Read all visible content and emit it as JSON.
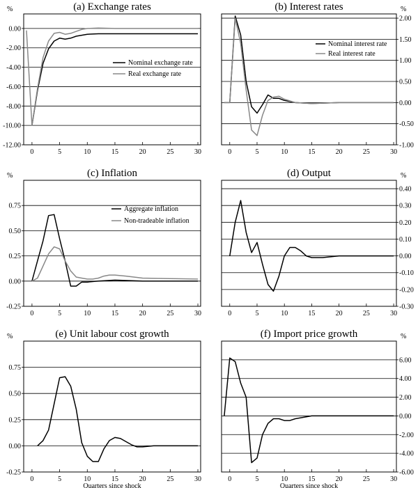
{
  "chart_data": [
    {
      "id": "a",
      "type": "line",
      "title": "(a) Exchange rates",
      "unit": "%",
      "unit_side": "left",
      "xlabel": "",
      "xlim": [
        -1.5,
        30.5
      ],
      "ylim": [
        -12,
        1.5
      ],
      "xticks": [
        0,
        5,
        10,
        15,
        20,
        25,
        30
      ],
      "yticks": [
        0,
        -2,
        -4,
        -6,
        -8,
        -10,
        -12
      ],
      "ytick_labels": [
        "0.00",
        "-2.00",
        "-4.00",
        "-6.00",
        "-8.00",
        "-10.00",
        "-12.00"
      ],
      "legend_position": "center-right",
      "series": [
        {
          "name": "Nominal exchange rate",
          "color": "#000000",
          "points": [
            [
              0,
              -10
            ],
            [
              1,
              -6.4
            ],
            [
              2,
              -3.6
            ],
            [
              3,
              -2.1
            ],
            [
              4,
              -1.3
            ],
            [
              5,
              -1.0
            ],
            [
              6,
              -1.1
            ],
            [
              7,
              -1.0
            ],
            [
              8,
              -0.8
            ],
            [
              9,
              -0.7
            ],
            [
              10,
              -0.6
            ],
            [
              12,
              -0.55
            ],
            [
              15,
              -0.55
            ],
            [
              20,
              -0.55
            ],
            [
              30,
              -0.55
            ]
          ]
        },
        {
          "name": "Real exchange rate",
          "color": "#888888",
          "points": [
            [
              -1,
              -0.2
            ],
            [
              0,
              -10
            ],
            [
              1,
              -6.2
            ],
            [
              2,
              -3.0
            ],
            [
              3,
              -1.3
            ],
            [
              4,
              -0.5
            ],
            [
              5,
              -0.4
            ],
            [
              6,
              -0.6
            ],
            [
              7,
              -0.5
            ],
            [
              8,
              -0.3
            ],
            [
              9,
              -0.1
            ],
            [
              10,
              0.0
            ],
            [
              12,
              0.05
            ],
            [
              15,
              0.0
            ],
            [
              20,
              0.0
            ],
            [
              30,
              0.0
            ]
          ]
        }
      ]
    },
    {
      "id": "b",
      "type": "line",
      "title": "(b) Interest rates",
      "unit": "%",
      "unit_side": "right",
      "xlabel": "",
      "xlim": [
        -1.5,
        30.5
      ],
      "ylim": [
        -1.0,
        2.1
      ],
      "xticks": [
        0,
        5,
        10,
        15,
        20,
        25,
        30
      ],
      "yticks": [
        2,
        1.5,
        1,
        0.5,
        0,
        -0.5,
        -1
      ],
      "ytick_labels": [
        "2.00",
        "1.50",
        "1.00",
        "0.50",
        "0.00",
        "-0.50",
        "-1.00"
      ],
      "legend_position": "top-right",
      "series": [
        {
          "name": "Nominal interest rate",
          "color": "#000000",
          "points": [
            [
              -1,
              0
            ],
            [
              0,
              0
            ],
            [
              1,
              2.05
            ],
            [
              2,
              1.6
            ],
            [
              3,
              0.5
            ],
            [
              4,
              -0.1
            ],
            [
              5,
              -0.25
            ],
            [
              6,
              -0.05
            ],
            [
              7,
              0.18
            ],
            [
              8,
              0.1
            ],
            [
              9,
              0.1
            ],
            [
              10,
              0.05
            ],
            [
              12,
              0.0
            ],
            [
              15,
              -0.02
            ],
            [
              20,
              0.0
            ],
            [
              30,
              0.0
            ]
          ]
        },
        {
          "name": "Real interest rate",
          "color": "#888888",
          "points": [
            [
              -1,
              0
            ],
            [
              0,
              0
            ],
            [
              1,
              2.0
            ],
            [
              2,
              1.4
            ],
            [
              3,
              0.3
            ],
            [
              4,
              -0.65
            ],
            [
              5,
              -0.78
            ],
            [
              6,
              -0.3
            ],
            [
              7,
              0.05
            ],
            [
              8,
              0.13
            ],
            [
              9,
              0.15
            ],
            [
              10,
              0.08
            ],
            [
              12,
              0.0
            ],
            [
              15,
              -0.02
            ],
            [
              20,
              0.0
            ],
            [
              30,
              0.0
            ]
          ]
        }
      ]
    },
    {
      "id": "c",
      "type": "line",
      "title": "(c) Inflation",
      "unit": "%",
      "unit_side": "left",
      "xlabel": "",
      "xlim": [
        -1.5,
        30.5
      ],
      "ylim": [
        -0.25,
        1.0
      ],
      "xticks": [
        0,
        5,
        10,
        15,
        20,
        25,
        30
      ],
      "yticks": [
        0.75,
        0.5,
        0.25,
        0,
        -0.25
      ],
      "ytick_labels": [
        "0.75",
        "0.50",
        "0.25",
        "0.00",
        "-0.25"
      ],
      "legend_position": "top-right",
      "series": [
        {
          "name": "Aggregate inflation",
          "color": "#000000",
          "points": [
            [
              0,
              0
            ],
            [
              1,
              0.2
            ],
            [
              2,
              0.4
            ],
            [
              3,
              0.65
            ],
            [
              4,
              0.66
            ],
            [
              5,
              0.42
            ],
            [
              6,
              0.2
            ],
            [
              7,
              -0.05
            ],
            [
              8,
              -0.05
            ],
            [
              9,
              -0.01
            ],
            [
              10,
              -0.01
            ],
            [
              12,
              0.0
            ],
            [
              15,
              0.01
            ],
            [
              20,
              0.0
            ],
            [
              30,
              0.0
            ]
          ]
        },
        {
          "name": "Non-tradeable inflation",
          "color": "#888888",
          "points": [
            [
              0,
              0
            ],
            [
              1,
              0.03
            ],
            [
              2,
              0.15
            ],
            [
              3,
              0.27
            ],
            [
              4,
              0.34
            ],
            [
              5,
              0.32
            ],
            [
              6,
              0.2
            ],
            [
              7,
              0.1
            ],
            [
              8,
              0.04
            ],
            [
              9,
              0.03
            ],
            [
              10,
              0.02
            ],
            [
              11,
              0.02
            ],
            [
              12,
              0.03
            ],
            [
              13,
              0.05
            ],
            [
              14,
              0.06
            ],
            [
              15,
              0.06
            ],
            [
              17,
              0.05
            ],
            [
              20,
              0.03
            ],
            [
              25,
              0.025
            ],
            [
              30,
              0.02
            ]
          ]
        }
      ]
    },
    {
      "id": "d",
      "type": "line",
      "title": "(d) Output",
      "unit": "%",
      "unit_side": "right",
      "xlabel": "",
      "xlim": [
        -1.5,
        30.5
      ],
      "ylim": [
        -0.3,
        0.45
      ],
      "xticks": [
        0,
        5,
        10,
        15,
        20,
        25,
        30
      ],
      "yticks": [
        0.4,
        0.3,
        0.2,
        0.1,
        0,
        -0.1,
        -0.2,
        -0.3
      ],
      "ytick_labels": [
        "0.40",
        "0.30",
        "0.20",
        "0.10",
        "0.00",
        "-0.10",
        "-0.20",
        "-0.30"
      ],
      "legend_position": "none",
      "series": [
        {
          "name": "Output",
          "color": "#000000",
          "points": [
            [
              0,
              0
            ],
            [
              1,
              0.2
            ],
            [
              2,
              0.33
            ],
            [
              3,
              0.14
            ],
            [
              4,
              0.02
            ],
            [
              5,
              0.08
            ],
            [
              6,
              -0.05
            ],
            [
              7,
              -0.17
            ],
            [
              8,
              -0.21
            ],
            [
              9,
              -0.12
            ],
            [
              10,
              0.0
            ],
            [
              11,
              0.05
            ],
            [
              12,
              0.05
            ],
            [
              13,
              0.03
            ],
            [
              14,
              0.0
            ],
            [
              15,
              -0.01
            ],
            [
              17,
              -0.01
            ],
            [
              20,
              0.0
            ],
            [
              30,
              0.0
            ]
          ]
        }
      ]
    },
    {
      "id": "e",
      "type": "line",
      "title": "(e) Unit labour cost growth",
      "unit": "%",
      "unit_side": "left",
      "xlabel": "Quarters since shock",
      "xlim": [
        -1.5,
        30.5
      ],
      "ylim": [
        -0.25,
        1.0
      ],
      "xticks": [
        0,
        5,
        10,
        15,
        20,
        25,
        30
      ],
      "yticks": [
        0.75,
        0.5,
        0.25,
        0,
        -0.25
      ],
      "ytick_labels": [
        "0.75",
        "0.50",
        "0.25",
        "0.00",
        "-0.25"
      ],
      "legend_position": "none",
      "series": [
        {
          "name": "Unit labour cost growth",
          "color": "#000000",
          "points": [
            [
              1,
              0
            ],
            [
              2,
              0.05
            ],
            [
              3,
              0.15
            ],
            [
              4,
              0.4
            ],
            [
              5,
              0.65
            ],
            [
              6,
              0.66
            ],
            [
              7,
              0.57
            ],
            [
              8,
              0.35
            ],
            [
              9,
              0.03
            ],
            [
              10,
              -0.1
            ],
            [
              11,
              -0.15
            ],
            [
              12,
              -0.15
            ],
            [
              13,
              -0.03
            ],
            [
              14,
              0.05
            ],
            [
              15,
              0.08
            ],
            [
              16,
              0.07
            ],
            [
              17,
              0.04
            ],
            [
              18,
              0.01
            ],
            [
              19,
              -0.01
            ],
            [
              20,
              -0.01
            ],
            [
              22,
              0.0
            ],
            [
              25,
              0.0
            ],
            [
              30,
              0.0
            ]
          ]
        }
      ]
    },
    {
      "id": "f",
      "type": "line",
      "title": "(f) Import price growth",
      "unit": "%",
      "unit_side": "right",
      "xlabel": "Quarters since shock",
      "xlim": [
        -1.5,
        30.5
      ],
      "ylim": [
        -6,
        8
      ],
      "xticks": [
        0,
        5,
        10,
        15,
        20,
        25,
        30
      ],
      "yticks": [
        6,
        4,
        2,
        0,
        -2,
        -4,
        -6
      ],
      "ytick_labels": [
        "6.00",
        "4.00",
        "2.00",
        "0.00",
        "-2.00",
        "-4.00",
        "-6.00"
      ],
      "legend_position": "none",
      "series": [
        {
          "name": "Import price growth",
          "color": "#000000",
          "points": [
            [
              -1,
              0
            ],
            [
              0,
              6.2
            ],
            [
              1,
              5.8
            ],
            [
              2,
              3.5
            ],
            [
              3,
              2
            ],
            [
              4,
              -5
            ],
            [
              5,
              -4.5
            ],
            [
              6,
              -2
            ],
            [
              7,
              -0.8
            ],
            [
              8,
              -0.3
            ],
            [
              9,
              -0.3
            ],
            [
              10,
              -0.5
            ],
            [
              11,
              -0.5
            ],
            [
              12,
              -0.3
            ],
            [
              13,
              -0.2
            ],
            [
              14,
              -0.1
            ],
            [
              15,
              0.0
            ],
            [
              20,
              0.0
            ],
            [
              30,
              0.0
            ]
          ]
        }
      ]
    }
  ]
}
